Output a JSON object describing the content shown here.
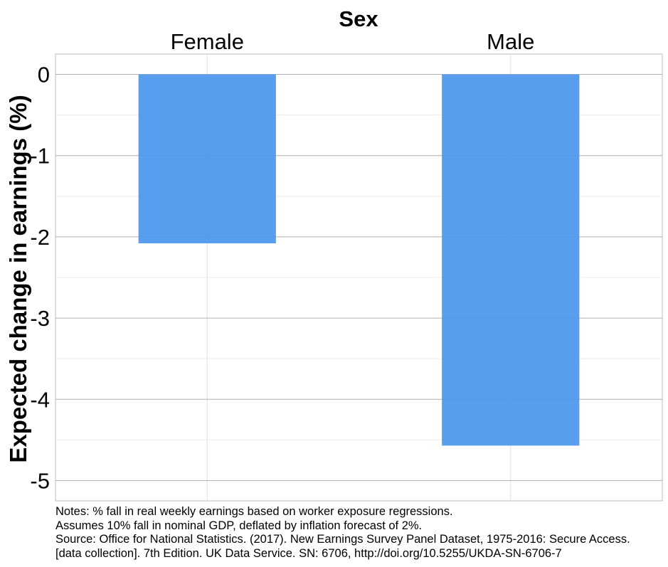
{
  "chart_data": {
    "type": "bar",
    "title": "Sex",
    "categories": [
      "Female",
      "Male"
    ],
    "values": [
      -2.08,
      -4.57
    ],
    "xlabel": "",
    "ylabel": "Expected change in earnings (%)",
    "ylim": [
      -5.25,
      0.25
    ],
    "yticks": [
      0,
      -1,
      -2,
      -3,
      -4,
      -5
    ],
    "ytick_labels": [
      "0",
      "-1",
      "-2",
      "-3",
      "-4",
      "-5"
    ],
    "bar_color": "#4a96ee",
    "grid": true,
    "legend": "none"
  },
  "notes": [
    "Notes: % fall in real weekly earnings based on worker exposure regressions.",
    "Assumes 10% fall in nominal GDP, deflated by inflation forecast of 2%.",
    "Source: Office for National Statistics. (2017). New Earnings Survey Panel Dataset, 1975-2016: Secure Access.",
    "[data collection]. 7th Edition. UK Data Service. SN: 6706, http://doi.org/10.5255/UKDA-SN-6706-7"
  ]
}
